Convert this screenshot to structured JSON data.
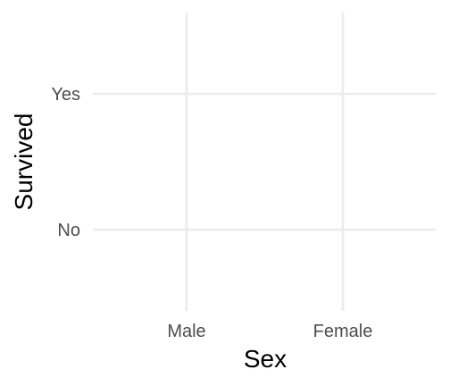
{
  "chart_data": {
    "type": "scatter",
    "x_categories": [
      "Male",
      "Female"
    ],
    "y_categories": [
      "No",
      "Yes"
    ],
    "points": [],
    "xlabel": "Sex",
    "ylabel": "Survived",
    "title": "",
    "grid": true,
    "legend": "none",
    "colors": {
      "grid": "#ebebeb",
      "tick_text": "#4d4d4d",
      "axis_title": "#000000",
      "background": "#ffffff"
    }
  }
}
